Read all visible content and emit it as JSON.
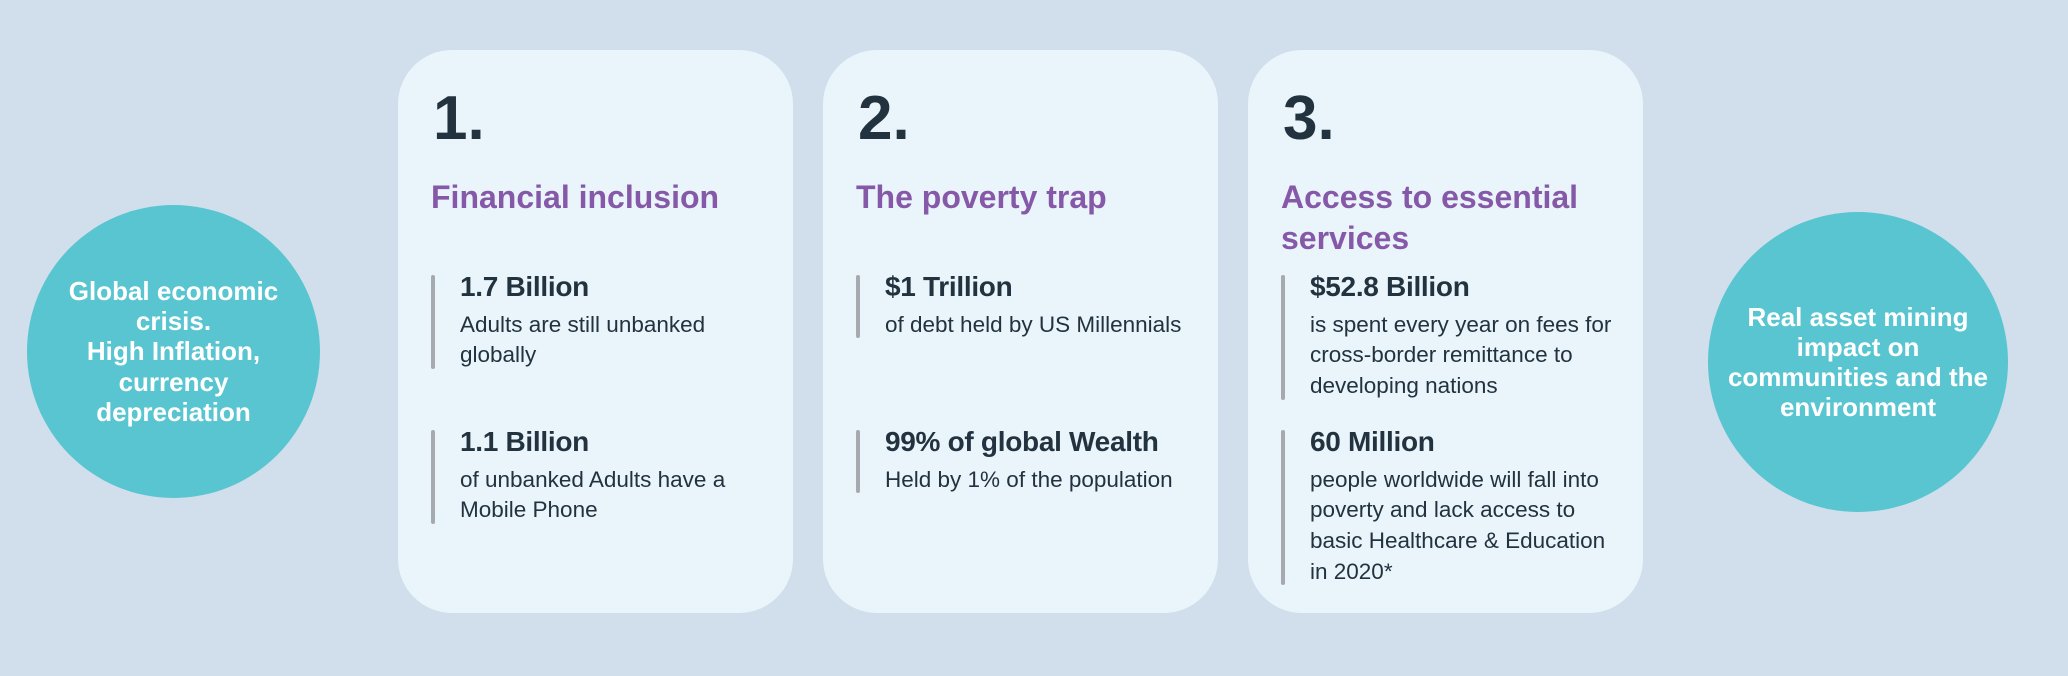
{
  "colors": {
    "background": "#d0dfeb",
    "card_background": "#eaf4fb",
    "circle_teal": "#59c5d1",
    "heading_purple": "#8659a8",
    "dark_text": "#22333f",
    "stat_bar_gray": "#a6aaae",
    "circle_text": "#ffffff"
  },
  "left_circle": {
    "lines": [
      "Global economic",
      "crisis.",
      "High Inflation,",
      "currency",
      "depreciation"
    ]
  },
  "right_circle": {
    "lines": [
      "Real asset  mining",
      "impact on",
      "communities and the",
      "environment"
    ]
  },
  "cards": [
    {
      "number": "1.",
      "title": "Financial inclusion",
      "stats": [
        {
          "value": "1.7 Billion",
          "description": "Adults are still unbanked globally"
        },
        {
          "value": "1.1 Billion",
          "description": "of unbanked Adults have a Mobile Phone"
        }
      ]
    },
    {
      "number": "2.",
      "title": "The poverty trap",
      "stats": [
        {
          "value": "$1 Trillion",
          "description": "of debt held by US Millennials"
        },
        {
          "value": "99% of global Wealth",
          "description": "Held by 1% of the population"
        }
      ]
    },
    {
      "number": "3.",
      "title": "Access to essential services",
      "stats": [
        {
          "value": "$52.8 Billion",
          "description": "is spent every year on fees for cross-border remittance to developing nations"
        },
        {
          "value": "60 Million",
          "description": "people worldwide will fall into poverty and lack access to basic Healthcare & Education in 2020*"
        }
      ]
    }
  ]
}
